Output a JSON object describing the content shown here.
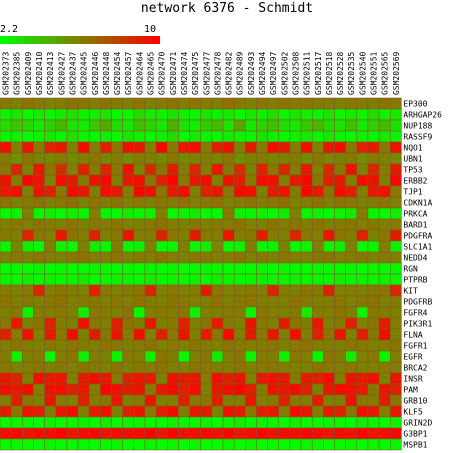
{
  "title": "network 6376 - Schmidt",
  "scale": {
    "min": "2.2",
    "max": "10"
  },
  "colors": {
    "low": "#00ff00",
    "mid": "#7f7f00",
    "high": "#ff0000",
    "grid": "#7a5a2a"
  },
  "chart_data": {
    "type": "heatmap",
    "title": "network 6376 - Schmidt",
    "value_range": [
      2.2,
      10
    ],
    "columns": [
      "GSM202373",
      "GSM202385",
      "GSM202409",
      "GSM202410",
      "GSM202413",
      "GSM202427",
      "GSM202437",
      "GSM202445",
      "GSM202446",
      "GSM202448",
      "GSM202454",
      "GSM202457",
      "GSM202464",
      "GSM202465",
      "GSM202470",
      "GSM202471",
      "GSM202474",
      "GSM202475",
      "GSM202477",
      "GSM202478",
      "GSM202482",
      "GSM202489",
      "GSM202493",
      "GSM202494",
      "GSM202497",
      "GSM202502",
      "GSM202508",
      "GSM202511",
      "GSM202517",
      "GSM202518",
      "GSM202528",
      "GSM202535",
      "GSM202540",
      "GSM202551",
      "GSM202565",
      "GSM202569"
    ],
    "rows": [
      "EP300",
      "ARHGAP26",
      "NUP188",
      "RASSF9",
      "NQO1",
      "UBN1",
      "TP53",
      "ERBB2",
      "TJP1",
      "CDKN1A",
      "PRKCA",
      "BARD1",
      "PDGFRA",
      "SLC1A1",
      "NEDD4",
      "RGN",
      "PTPRB",
      "KIT",
      "PDGFRB",
      "FGFR4",
      "PIK3R1",
      "FLNA",
      "FGFR1",
      "EGFR",
      "BRCA2",
      "INSR",
      "PAM",
      "GRB10",
      "KLF5",
      "GRIN2D",
      "G3BP1",
      "MSPB1"
    ],
    "values": [
      [
        6.3,
        6.0,
        6.5,
        6.3,
        6.1,
        6.2,
        6.6,
        6.4,
        6.2,
        6.5,
        6.3,
        6.2,
        6.4,
        6.1,
        6.3,
        6.5,
        6.2,
        6.4,
        6.3,
        6.2,
        6.6,
        6.3,
        6.1,
        6.4,
        6.2,
        6.5,
        6.3,
        6.4,
        6.2,
        6.3,
        6.1,
        6.4,
        6.3,
        6.2,
        6.5,
        6.3
      ],
      [
        2.6,
        3.0,
        2.4,
        2.8,
        2.5,
        2.9,
        3.2,
        2.6,
        2.7,
        3.0,
        2.4,
        2.5,
        3.4,
        2.8,
        2.6,
        3.1,
        2.7,
        2.5,
        3.0,
        2.6,
        2.8,
        2.4,
        2.9,
        2.7,
        3.3,
        2.5,
        3.0,
        2.7,
        2.6,
        3.1,
        2.5,
        2.8,
        2.6,
        3.2,
        2.7,
        2.9
      ],
      [
        3.2,
        4.0,
        3.4,
        2.8,
        3.6,
        4.4,
        3.0,
        2.7,
        3.9,
        4.8,
        3.3,
        2.9,
        4.1,
        3.5,
        2.8,
        4.6,
        3.1,
        2.7,
        3.8,
        4.3,
        3.0,
        5.0,
        2.9,
        3.6,
        4.2,
        3.2,
        2.8,
        3.9,
        4.5,
        3.3,
        3.0,
        4.1,
        2.9,
        3.7,
        4.4,
        3.1
      ],
      [
        2.5,
        2.7,
        2.4,
        2.6,
        2.9,
        2.5,
        3.2,
        2.6,
        2.4,
        2.8,
        2.5,
        3.0,
        2.6,
        2.4,
        2.7,
        3.4,
        2.5,
        2.9,
        2.6,
        2.4,
        2.8,
        2.6,
        2.5,
        3.1,
        2.7,
        2.4,
        2.6,
        2.8,
        2.5,
        3.0,
        2.6,
        2.4,
        2.7,
        2.5,
        2.9,
        2.6
      ],
      [
        9.6,
        6.1,
        9.4,
        6.3,
        8.9,
        9.2,
        6.0,
        9.7,
        6.2,
        9.0,
        6.4,
        9.5,
        9.1,
        6.1,
        9.8,
        6.3,
        9.3,
        9.6,
        6.2,
        9.0,
        9.4,
        6.0,
        9.2,
        6.3,
        9.7,
        9.1,
        6.2,
        9.5,
        6.1,
        9.3,
        9.6,
        6.4,
        9.0,
        9.2,
        6.3,
        9.4
      ],
      [
        6.2,
        5.6,
        6.4,
        6.0,
        5.8,
        6.3,
        5.7,
        6.1,
        6.4,
        5.9,
        6.2,
        5.6,
        6.3,
        6.0,
        5.8,
        6.4,
        5.7,
        6.1,
        6.2,
        5.9,
        6.4,
        5.6,
        6.0,
        6.3,
        5.8,
        6.1,
        6.2,
        5.7,
        6.4,
        5.9,
        6.0,
        6.3,
        5.6,
        6.2,
        6.1,
        5.8
      ],
      [
        6.3,
        8.8,
        6.0,
        9.2,
        6.4,
        8.6,
        6.1,
        9.0,
        6.2,
        8.9,
        6.3,
        9.4,
        6.0,
        8.7,
        6.4,
        9.1,
        6.2,
        8.8,
        6.1,
        9.3,
        6.3,
        8.6,
        6.0,
        9.0,
        6.4,
        8.9,
        6.2,
        9.2,
        6.1,
        8.7,
        6.3,
        9.4,
        6.0,
        8.8,
        6.2,
        9.1
      ],
      [
        9.5,
        6.2,
        9.8,
        9.3,
        6.0,
        9.6,
        9.1,
        6.3,
        9.4,
        9.7,
        6.1,
        9.2,
        9.5,
        6.4,
        9.0,
        9.8,
        6.2,
        9.3,
        9.6,
        6.0,
        9.4,
        9.1,
        6.3,
        9.7,
        9.5,
        6.1,
        9.2,
        9.8,
        6.4,
        9.0,
        9.3,
        6.2,
        9.6,
        9.4,
        6.0,
        9.7
      ],
      [
        9.2,
        9.6,
        6.1,
        9.4,
        9.0,
        6.3,
        9.7,
        9.3,
        6.0,
        9.5,
        9.1,
        6.2,
        9.8,
        9.4,
        6.4,
        9.2,
        9.6,
        6.1,
        9.0,
        9.3,
        6.3,
        9.7,
        9.5,
        6.0,
        9.1,
        9.4,
        6.2,
        9.8,
        9.2,
        6.4,
        9.6,
        9.0,
        6.1,
        9.3,
        9.5,
        6.3
      ],
      [
        6.4,
        6.0,
        6.2,
        6.5,
        6.1,
        6.3,
        6.6,
        6.0,
        6.4,
        6.2,
        6.5,
        6.1,
        6.3,
        6.0,
        6.4,
        6.2,
        6.6,
        6.1,
        6.3,
        6.5,
        6.0,
        6.2,
        6.4,
        6.1,
        6.3,
        6.6,
        6.0,
        6.2,
        6.5,
        6.1,
        6.4,
        6.3,
        6.0,
        6.2,
        6.5,
        6.1
      ],
      [
        2.4,
        2.6,
        6.0,
        2.5,
        2.8,
        2.4,
        2.7,
        2.5,
        6.2,
        2.6,
        2.4,
        2.9,
        2.5,
        2.7,
        6.1,
        2.4,
        2.6,
        2.8,
        2.5,
        2.4,
        6.3,
        2.7,
        2.5,
        2.6,
        2.4,
        2.8,
        6.0,
        2.5,
        2.7,
        2.4,
        2.6,
        2.9,
        6.2,
        2.5,
        2.4,
        2.7
      ],
      [
        6.1,
        6.3,
        6.0,
        6.4,
        6.2,
        6.1,
        6.5,
        6.0,
        6.3,
        6.2,
        6.4,
        6.1,
        6.0,
        6.3,
        6.5,
        6.2,
        6.1,
        6.4,
        6.0,
        6.3,
        6.2,
        6.5,
        6.1,
        6.0,
        6.4,
        6.2,
        6.3,
        6.1,
        6.5,
        6.0,
        6.2,
        6.4,
        6.1,
        6.3,
        6.0,
        6.2
      ],
      [
        6.2,
        6.0,
        8.9,
        6.3,
        6.1,
        9.2,
        6.4,
        6.2,
        9.0,
        6.0,
        6.3,
        9.4,
        6.1,
        6.2,
        8.8,
        6.4,
        6.0,
        9.1,
        6.3,
        6.2,
        9.3,
        6.1,
        6.4,
        9.0,
        6.2,
        6.0,
        8.9,
        6.3,
        6.1,
        9.2,
        6.4,
        6.2,
        9.0,
        6.0,
        6.3,
        9.1
      ],
      [
        2.5,
        5.9,
        2.7,
        2.4,
        6.1,
        2.6,
        2.5,
        6.0,
        2.8,
        2.4,
        6.2,
        2.5,
        2.7,
        6.0,
        2.4,
        2.6,
        6.1,
        2.5,
        2.8,
        5.9,
        2.4,
        2.6,
        6.2,
        2.5,
        2.7,
        6.0,
        2.4,
        2.5,
        6.1,
        2.6,
        2.8,
        6.0,
        2.4,
        2.5,
        6.2,
        2.7
      ],
      [
        6.0,
        6.3,
        6.1,
        6.4,
        6.2,
        6.0,
        6.3,
        6.5,
        6.1,
        6.2,
        6.4,
        6.0,
        6.3,
        6.1,
        6.5,
        6.2,
        6.0,
        6.4,
        6.3,
        6.1,
        6.2,
        6.5,
        6.0,
        6.3,
        6.1,
        6.4,
        6.2,
        6.0,
        6.3,
        6.5,
        6.1,
        6.2,
        6.4,
        6.0,
        6.3,
        6.1
      ],
      [
        2.3,
        2.4,
        2.3,
        2.5,
        2.3,
        2.4,
        2.3,
        2.3,
        2.5,
        2.4,
        2.3,
        2.4,
        2.3,
        2.5,
        2.3,
        2.4,
        2.3,
        2.3,
        2.5,
        2.4,
        2.3,
        2.4,
        2.3,
        2.5,
        2.3,
        2.4,
        2.3,
        2.3,
        2.5,
        2.4,
        2.3,
        2.4,
        2.3,
        2.5,
        2.3,
        2.4
      ],
      [
        2.6,
        2.5,
        2.8,
        2.4,
        2.7,
        2.5,
        2.6,
        2.9,
        2.4,
        2.5,
        2.7,
        2.6,
        2.4,
        2.8,
        2.5,
        2.6,
        2.4,
        2.7,
        2.5,
        2.9,
        2.6,
        2.4,
        2.5,
        2.8,
        2.6,
        2.5,
        2.7,
        2.4,
        2.6,
        2.5,
        2.8,
        2.4,
        2.7,
        2.5,
        2.6,
        2.4
      ],
      [
        6.2,
        6.0,
        6.3,
        8.8,
        6.1,
        6.4,
        6.2,
        6.0,
        9.0,
        6.3,
        6.1,
        6.2,
        6.4,
        8.9,
        6.0,
        6.3,
        6.1,
        6.2,
        9.1,
        6.4,
        6.0,
        6.2,
        6.3,
        6.1,
        8.8,
        6.2,
        6.0,
        6.4,
        6.3,
        9.0,
        6.1,
        6.2,
        6.0,
        6.3,
        6.4,
        8.9
      ],
      [
        6.4,
        6.1,
        6.2,
        6.0,
        6.3,
        6.5,
        6.1,
        6.2,
        6.4,
        6.0,
        6.3,
        6.1,
        6.5,
        6.2,
        6.0,
        6.4,
        6.3,
        6.1,
        6.2,
        6.5,
        6.0,
        6.3,
        6.4,
        6.1,
        6.2,
        6.0,
        6.5,
        6.3,
        6.1,
        6.2,
        6.4,
        6.0,
        6.3,
        6.5,
        6.1,
        6.2
      ],
      [
        6.0,
        6.3,
        2.6,
        6.2,
        6.1,
        6.4,
        6.0,
        2.8,
        6.3,
        6.2,
        6.1,
        6.5,
        2.5,
        6.0,
        6.3,
        6.2,
        6.4,
        2.7,
        6.1,
        6.0,
        6.3,
        6.2,
        2.6,
        6.4,
        6.1,
        6.0,
        6.3,
        2.8,
        6.2,
        6.1,
        6.4,
        6.0,
        2.5,
        6.3,
        6.2,
        6.1
      ],
      [
        6.3,
        9.2,
        6.1,
        6.4,
        9.0,
        6.2,
        6.0,
        9.4,
        6.3,
        6.1,
        9.1,
        6.4,
        6.2,
        9.3,
        6.0,
        6.3,
        9.0,
        6.1,
        6.4,
        9.2,
        6.2,
        6.0,
        9.4,
        6.3,
        6.1,
        9.1,
        6.4,
        6.2,
        9.3,
        6.0,
        6.3,
        9.0,
        6.1,
        6.4,
        9.2,
        6.2
      ],
      [
        9.0,
        6.2,
        9.4,
        6.1,
        9.2,
        6.3,
        9.6,
        6.0,
        9.1,
        6.4,
        9.3,
        6.2,
        9.5,
        6.1,
        9.0,
        6.3,
        9.4,
        6.0,
        9.2,
        6.4,
        9.6,
        6.1,
        9.1,
        6.3,
        9.3,
        6.2,
        9.5,
        6.0,
        9.0,
        6.4,
        9.4,
        6.1,
        9.2,
        6.3,
        9.6,
        6.0
      ],
      [
        6.1,
        6.4,
        6.2,
        6.0,
        6.3,
        6.1,
        6.5,
        6.2,
        6.0,
        6.4,
        6.3,
        6.1,
        6.2,
        6.5,
        6.0,
        6.3,
        6.1,
        6.4,
        6.2,
        6.0,
        6.5,
        6.3,
        6.1,
        6.2,
        6.4,
        6.0,
        6.3,
        6.5,
        6.1,
        6.2,
        6.0,
        6.4,
        6.3,
        6.1,
        6.2,
        6.5
      ],
      [
        6.2,
        2.7,
        6.0,
        6.3,
        2.5,
        6.1,
        6.4,
        2.8,
        6.2,
        6.0,
        2.6,
        6.3,
        6.1,
        2.7,
        6.4,
        6.2,
        2.5,
        6.0,
        6.3,
        2.8,
        6.1,
        6.4,
        2.6,
        6.2,
        6.0,
        2.7,
        6.3,
        6.1,
        2.5,
        6.4,
        6.2,
        2.8,
        6.0,
        6.3,
        2.6,
        6.1
      ],
      [
        6.3,
        6.0,
        6.2,
        6.4,
        6.1,
        6.3,
        6.0,
        6.5,
        6.2,
        6.1,
        6.4,
        6.0,
        6.3,
        6.2,
        6.5,
        6.1,
        6.0,
        6.4,
        6.3,
        6.2,
        6.1,
        6.5,
        6.0,
        6.3,
        6.4,
        6.2,
        6.1,
        6.0,
        6.5,
        6.3,
        6.2,
        6.4,
        6.1,
        6.0,
        6.3,
        6.2
      ],
      [
        9.3,
        9.0,
        6.2,
        9.5,
        9.2,
        9.4,
        6.1,
        9.1,
        9.6,
        9.3,
        6.3,
        9.0,
        9.4,
        9.2,
        6.0,
        9.5,
        9.1,
        9.3,
        6.2,
        9.6,
        9.0,
        9.4,
        6.1,
        9.2,
        9.5,
        9.3,
        6.3,
        9.1,
        9.0,
        9.6,
        6.2,
        9.4,
        9.2,
        9.5,
        6.0,
        9.3
      ],
      [
        9.5,
        9.2,
        9.7,
        6.1,
        9.4,
        9.6,
        9.0,
        9.3,
        6.2,
        9.8,
        9.5,
        9.1,
        9.4,
        6.3,
        9.2,
        9.7,
        9.0,
        9.6,
        6.0,
        9.3,
        9.5,
        9.8,
        9.1,
        6.2,
        9.4,
        9.2,
        9.6,
        9.0,
        6.1,
        9.3,
        9.7,
        9.5,
        9.2,
        6.3,
        9.4,
        9.0
      ],
      [
        6.2,
        9.1,
        6.4,
        6.0,
        9.3,
        6.3,
        6.1,
        9.0,
        6.2,
        6.4,
        9.2,
        6.0,
        6.3,
        9.4,
        6.1,
        6.2,
        9.0,
        6.4,
        6.3,
        9.1,
        6.0,
        6.2,
        9.3,
        6.1,
        6.4,
        9.0,
        6.3,
        6.2,
        9.2,
        6.0,
        6.1,
        9.4,
        6.3,
        6.2,
        9.1,
        6.4
      ],
      [
        9.1,
        6.3,
        9.4,
        9.0,
        6.2,
        9.3,
        9.6,
        6.1,
        9.2,
        9.5,
        6.0,
        9.1,
        9.4,
        6.3,
        9.0,
        9.6,
        6.2,
        9.3,
        9.1,
        6.0,
        9.5,
        9.2,
        6.4,
        9.0,
        9.3,
        6.1,
        9.6,
        9.4,
        6.2,
        9.1,
        9.0,
        6.3,
        9.5,
        9.2,
        6.0,
        9.4
      ],
      [
        2.4,
        2.6,
        2.5,
        2.3,
        2.7,
        2.4,
        2.5,
        2.6,
        2.3,
        2.8,
        2.4,
        2.5,
        2.6,
        2.4,
        2.3,
        2.7,
        2.5,
        2.4,
        2.6,
        2.3,
        2.5,
        2.8,
        2.4,
        2.6,
        2.5,
        2.3,
        2.7,
        2.4,
        2.5,
        2.6,
        2.4,
        2.3,
        2.8,
        2.5,
        2.4,
        2.6
      ],
      [
        9.6,
        9.8,
        9.4,
        9.7,
        9.5,
        9.9,
        9.3,
        9.6,
        9.8,
        9.4,
        9.7,
        9.5,
        9.6,
        9.9,
        9.3,
        9.8,
        9.4,
        9.6,
        9.7,
        9.5,
        9.8,
        9.3,
        9.6,
        9.9,
        9.4,
        9.7,
        9.5,
        9.8,
        9.6,
        9.3,
        9.7,
        9.4,
        9.9,
        9.5,
        9.6,
        9.8
      ],
      [
        2.3,
        2.4,
        2.3,
        2.3,
        2.5,
        2.3,
        2.4,
        2.3,
        2.3,
        2.4,
        2.5,
        2.3,
        2.3,
        2.4,
        2.3,
        2.5,
        2.3,
        2.4,
        2.3,
        2.3,
        2.4,
        2.3,
        2.5,
        2.3,
        2.4,
        2.3,
        2.3,
        2.5,
        2.4,
        2.3,
        2.3,
        2.4,
        2.3,
        2.5,
        2.3,
        2.4
      ]
    ]
  }
}
